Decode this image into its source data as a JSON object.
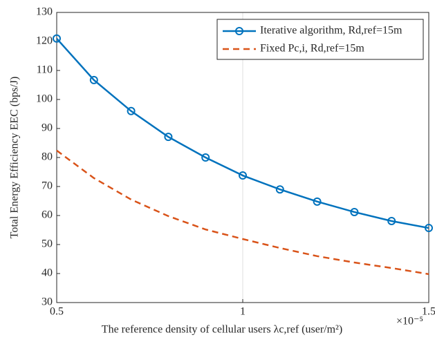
{
  "chart_data": {
    "type": "line",
    "x_label": "The reference density of cellular users λc,ref (user/m²)",
    "x_exponent": "×10⁻⁵",
    "y_label": "Total Energy Efficiency EEC (bps/J)",
    "x": [
      0.5,
      0.6,
      0.7,
      0.8,
      0.9,
      1.0,
      1.1,
      1.2,
      1.3,
      1.4,
      1.5
    ],
    "series": [
      {
        "name": "Iterative algorithm, Rd,ref=15m",
        "color": "#0072bd",
        "dash": false,
        "markers": true,
        "values": [
          121,
          106.7,
          96,
          87.1,
          80,
          73.8,
          69,
          64.8,
          61.2,
          58.1,
          55.7
        ]
      },
      {
        "name": "Fixed Pc,i, Rd,ref=15m",
        "color": "#d95319",
        "dash": true,
        "markers": false,
        "values": [
          82.4,
          72.9,
          65.5,
          59.8,
          55.2,
          51.9,
          48.8,
          46,
          43.8,
          41.9,
          39.8
        ]
      }
    ],
    "xlim": [
      0.5,
      1.5
    ],
    "xticks": [
      0.5,
      1,
      1.5
    ],
    "ylim": [
      30,
      130
    ],
    "yticks": [
      30,
      40,
      50,
      60,
      70,
      80,
      90,
      100,
      110,
      120,
      130
    ],
    "grid_x": true,
    "legend": "upper right"
  }
}
